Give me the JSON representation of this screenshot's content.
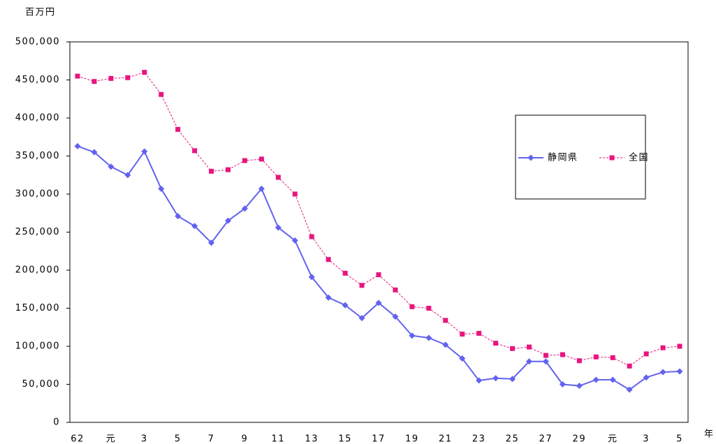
{
  "chart_data": {
    "type": "line",
    "y_label": "百万円",
    "x_label": "年",
    "categories": [
      "62",
      null,
      "元",
      null,
      "3",
      null,
      "5",
      null,
      "7",
      null,
      "9",
      null,
      "11",
      null,
      "13",
      null,
      "15",
      null,
      "17",
      null,
      "19",
      null,
      "21",
      null,
      "23",
      null,
      "25",
      null,
      "27",
      null,
      "29",
      null,
      "元",
      null,
      "3",
      null,
      "5"
    ],
    "series": [
      {
        "name": "静岡県",
        "color": "#6262f0",
        "line_style": "solid",
        "marker": "diamond",
        "values": [
          363000,
          355000,
          336000,
          325000,
          356000,
          307000,
          271000,
          258000,
          236000,
          265000,
          281000,
          307000,
          256000,
          239000,
          191000,
          164000,
          154000,
          137000,
          157000,
          139000,
          114000,
          111000,
          102000,
          84000,
          55000,
          58000,
          57000,
          80000,
          80000,
          50000,
          48000,
          56000,
          56000,
          43000,
          59000,
          66000,
          67000
        ]
      },
      {
        "name": "全国",
        "color": "#e8157e",
        "line_style": "dashed",
        "marker": "square",
        "values": [
          455000,
          448000,
          452000,
          453000,
          460000,
          431000,
          385000,
          357000,
          330000,
          332000,
          344000,
          346000,
          322000,
          300000,
          244000,
          214000,
          196000,
          180000,
          194000,
          174000,
          152000,
          150000,
          134000,
          116000,
          117000,
          104000,
          97000,
          99000,
          88000,
          89000,
          81000,
          86000,
          85000,
          74000,
          90000,
          98000,
          100000
        ]
      }
    ],
    "ylim": [
      0,
      500000
    ],
    "yticks": [
      0,
      {
        "value": 50000,
        "label": "50,000"
      },
      {
        "value": 100000,
        "label": "100,000"
      },
      {
        "value": 150000,
        "label": "150,000"
      },
      {
        "value": 200000,
        "label": "200,000"
      },
      {
        "value": 250000,
        "label": "250,000"
      },
      {
        "value": 300000,
        "label": "300,000"
      },
      {
        "value": 350000,
        "label": "350,000"
      },
      {
        "value": 400000,
        "label": "400,000"
      },
      {
        "value": 450000,
        "label": "450,000"
      },
      {
        "value": 500000,
        "label": "500,000"
      }
    ],
    "grid": false,
    "legend": "right"
  }
}
